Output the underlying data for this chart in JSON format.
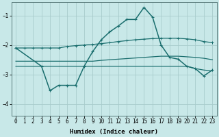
{
  "xlabel": "Humidex (Indice chaleur)",
  "bg_color": "#c8e8e8",
  "grid_color": "#a8cccc",
  "line_color": "#1a6e6e",
  "xlim": [
    -0.5,
    23.5
  ],
  "ylim": [
    -4.4,
    -0.55
  ],
  "yticks": [
    -4,
    -3,
    -2,
    -1
  ],
  "xticks": [
    0,
    1,
    2,
    3,
    4,
    5,
    6,
    7,
    8,
    9,
    10,
    11,
    12,
    13,
    14,
    15,
    16,
    17,
    18,
    19,
    20,
    21,
    22,
    23
  ],
  "line1_x": [
    0,
    1,
    2,
    3,
    4,
    5,
    6,
    7,
    8,
    9,
    10,
    11,
    12,
    13,
    14,
    15,
    16,
    17,
    18,
    19,
    20,
    21,
    22,
    23
  ],
  "line1_y": [
    -2.1,
    -2.1,
    -2.1,
    -2.1,
    -2.1,
    -2.1,
    -2.05,
    -2.02,
    -2.0,
    -1.98,
    -1.95,
    -1.92,
    -1.88,
    -1.85,
    -1.82,
    -1.8,
    -1.78,
    -1.77,
    -1.77,
    -1.77,
    -1.79,
    -1.82,
    -1.88,
    -1.92
  ],
  "line2_x": [
    0,
    1,
    2,
    3,
    4,
    5,
    6,
    7,
    8,
    9,
    10,
    11,
    12,
    13,
    14,
    15,
    16,
    17,
    18,
    19,
    20,
    21,
    22,
    23
  ],
  "line2_y": [
    -2.55,
    -2.55,
    -2.55,
    -2.55,
    -2.55,
    -2.55,
    -2.55,
    -2.55,
    -2.55,
    -2.55,
    -2.52,
    -2.5,
    -2.48,
    -2.46,
    -2.44,
    -2.42,
    -2.4,
    -2.38,
    -2.38,
    -2.38,
    -2.4,
    -2.42,
    -2.45,
    -2.5
  ],
  "line3_x": [
    0,
    1,
    2,
    3,
    4,
    5,
    6,
    7,
    8,
    9,
    10,
    11,
    12,
    13,
    14,
    15,
    16,
    17,
    18,
    19,
    20,
    21,
    22,
    23
  ],
  "line3_y": [
    -2.72,
    -2.72,
    -2.72,
    -2.72,
    -2.72,
    -2.72,
    -2.72,
    -2.72,
    -2.72,
    -2.72,
    -2.72,
    -2.72,
    -2.72,
    -2.72,
    -2.72,
    -2.72,
    -2.72,
    -2.72,
    -2.72,
    -2.72,
    -2.72,
    -2.8,
    -2.85,
    -2.88
  ],
  "line4_x": [
    0,
    3,
    4,
    5,
    6,
    7,
    8,
    9,
    10,
    11,
    12,
    13,
    14,
    15,
    16,
    17,
    18,
    19,
    20,
    21,
    22,
    23
  ],
  "line4_y": [
    -2.1,
    -2.72,
    -3.55,
    -3.37,
    -3.37,
    -3.37,
    -2.72,
    -2.22,
    -1.82,
    -1.55,
    -1.35,
    -1.13,
    -1.13,
    -0.72,
    -1.05,
    -2.0,
    -2.42,
    -2.48,
    -2.72,
    -2.8,
    -3.05,
    -2.85
  ],
  "tick_fontsize": 5.5,
  "label_fontsize": 6.5
}
